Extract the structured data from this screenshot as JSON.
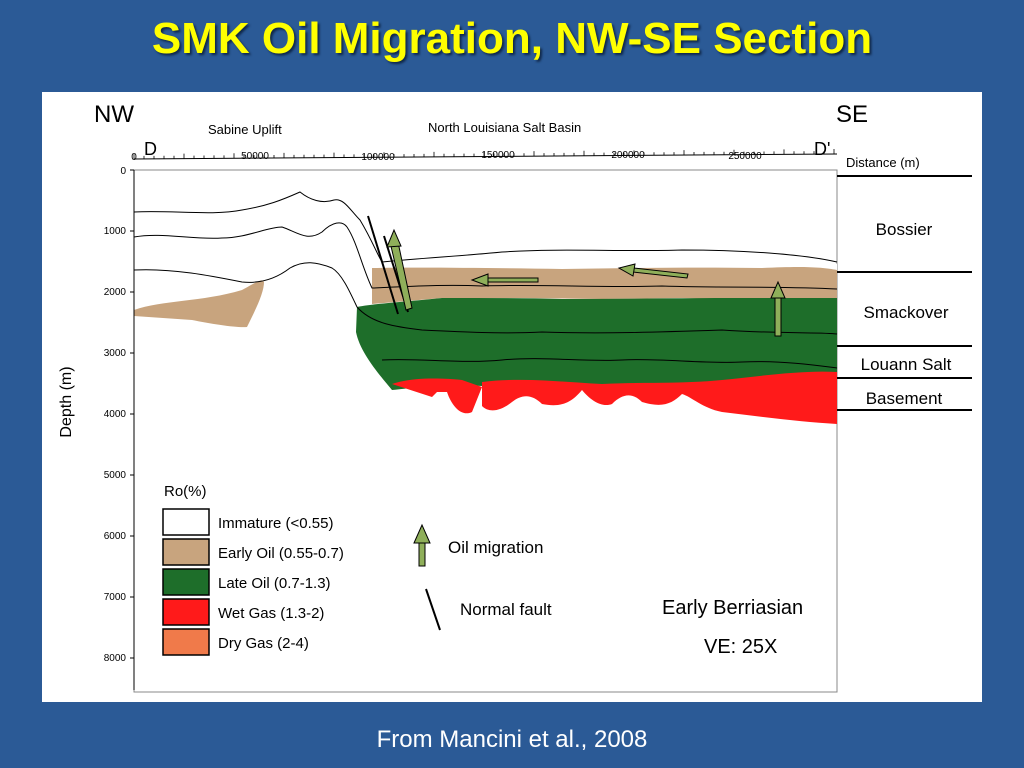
{
  "slide": {
    "title": "SMK Oil Migration, NW-SE Section",
    "source": "From Mancini et al., 2008"
  },
  "section": {
    "nw_label": "NW",
    "se_label": "SE",
    "start_label": "D",
    "end_label": "D'",
    "region_left": "Sabine Uplift",
    "region_center": "North Louisiana Salt Basin",
    "distance_axis_label": "Distance (m)",
    "distance_ticks": [
      "0",
      "50000",
      "100000",
      "150000",
      "200000",
      "250000"
    ],
    "depth_axis_label": "Depth (m)",
    "depth_ticks": [
      "0",
      "1000",
      "2000",
      "3000",
      "4000",
      "5000",
      "6000",
      "7000",
      "8000"
    ],
    "formations": [
      "Bossier",
      "Smackover",
      "Louann Salt",
      "Basement"
    ],
    "age": "Early Berriasian",
    "vertical_exaggeration": "VE: 25X"
  },
  "legend": {
    "title": "Ro(%)",
    "items": [
      {
        "label": "Immature (<0.55)",
        "color": "#ffffff"
      },
      {
        "label": "Early Oil (0.55-0.7)",
        "color": "#c8a47e"
      },
      {
        "label": "Late Oil (0.7-1.3)",
        "color": "#1e6e2a"
      },
      {
        "label": "Wet Gas (1.3-2)",
        "color": "#ff1a1a"
      },
      {
        "label": "Dry Gas (2-4)",
        "color": "#f07a4a"
      }
    ],
    "oil_migration": "Oil migration",
    "normal_fault": "Normal fault"
  },
  "colors": {
    "background": "#2b5a96",
    "title": "#ffff00",
    "early_oil": "#c8a47e",
    "late_oil": "#1e6e2a",
    "wet_gas": "#ff1a1a",
    "arrow_fill": "#8faf5a"
  }
}
